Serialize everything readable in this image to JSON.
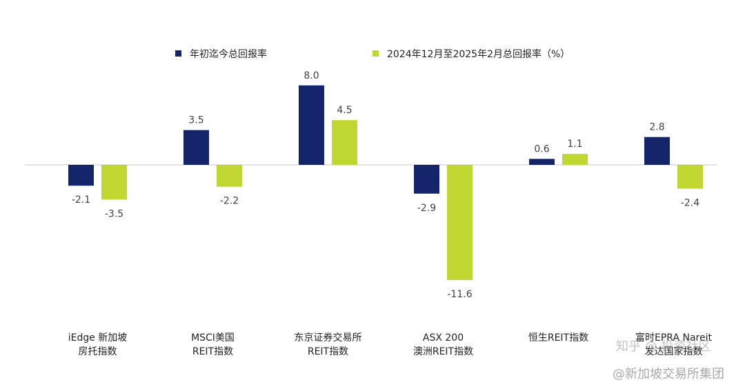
{
  "chart_data": {
    "type": "bar",
    "categories": [
      [
        "iEdge 新加坡",
        "房托指数"
      ],
      [
        "MSCI美国",
        "REIT指数"
      ],
      [
        "东京证券交易所",
        "REIT指数"
      ],
      [
        "ASX 200",
        "澳洲REIT指数"
      ],
      [
        "恒生REIT指数"
      ],
      [
        "富时EPRA Nareit",
        "发达国家指数"
      ]
    ],
    "series": [
      {
        "name": "年初迄今总回报率",
        "color": "#13246b",
        "values": [
          -2.1,
          3.5,
          8.0,
          -2.9,
          0.6,
          2.8
        ]
      },
      {
        "name": "2024年12月至2025年2月总回报率（%）",
        "color": "#bfd730",
        "values": [
          -3.5,
          -2.2,
          4.5,
          -11.6,
          1.1,
          -2.4
        ]
      }
    ],
    "ylim": [
      -11.6,
      8.0
    ],
    "title": "",
    "xlabel": "",
    "ylabel": ""
  },
  "watermark": {
    "community": "知乎 @ 投资社区",
    "source": "@新加坡交易所集团"
  }
}
